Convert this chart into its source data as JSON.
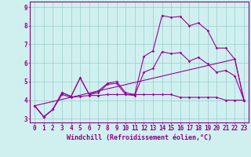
{
  "x_labels": [
    0,
    1,
    2,
    3,
    4,
    5,
    6,
    7,
    8,
    9,
    10,
    11,
    12,
    13,
    14,
    15,
    16,
    17,
    18,
    19,
    20,
    21,
    22,
    23
  ],
  "line1_x": [
    0,
    1,
    2,
    3,
    4,
    5,
    6,
    7,
    8,
    9,
    10,
    11,
    12,
    13,
    14,
    15,
    16,
    17,
    18,
    19,
    20,
    21,
    22,
    23
  ],
  "line1_y": [
    3.7,
    3.1,
    3.5,
    4.4,
    4.2,
    5.2,
    4.3,
    4.5,
    4.9,
    5.0,
    4.4,
    4.3,
    6.35,
    6.65,
    8.55,
    8.45,
    8.5,
    8.0,
    8.15,
    7.75,
    6.8,
    6.8,
    6.2,
    4.0
  ],
  "line2_x": [
    0,
    1,
    2,
    3,
    4,
    5,
    6,
    7,
    8,
    9,
    10,
    11,
    12,
    13,
    14,
    15,
    16,
    17,
    18,
    19,
    20,
    21,
    22,
    23
  ],
  "line2_y": [
    3.7,
    3.1,
    3.5,
    4.4,
    4.2,
    5.2,
    4.3,
    4.4,
    4.85,
    4.9,
    4.3,
    4.25,
    5.5,
    5.7,
    6.6,
    6.5,
    6.55,
    6.1,
    6.3,
    5.95,
    5.5,
    5.6,
    5.3,
    4.0
  ],
  "line3_x": [
    0,
    22,
    23
  ],
  "line3_y": [
    3.7,
    6.2,
    4.0
  ],
  "line4_x": [
    0,
    1,
    2,
    3,
    4,
    5,
    6,
    7,
    8,
    9,
    10,
    11,
    12,
    13,
    14,
    15,
    16,
    17,
    18,
    19,
    20,
    21,
    22,
    23
  ],
  "line4_y": [
    3.7,
    3.1,
    3.5,
    4.3,
    4.15,
    4.2,
    4.25,
    4.25,
    4.3,
    4.3,
    4.3,
    4.3,
    4.3,
    4.3,
    4.3,
    4.3,
    4.15,
    4.15,
    4.15,
    4.15,
    4.15,
    4.0,
    4.0,
    4.0
  ],
  "xlim": [
    -0.5,
    23.5
  ],
  "ylim": [
    2.8,
    9.3
  ],
  "yticks": [
    3,
    4,
    5,
    6,
    7,
    8,
    9
  ],
  "xlabel": "Windchill (Refroidissement éolien,°C)",
  "line_color": "#990099",
  "bg_color": "#d0f0f0",
  "grid_color": "#99cccc",
  "axis_color": "#880088",
  "label_fontsize": 6.0,
  "tick_fontsize": 5.5
}
